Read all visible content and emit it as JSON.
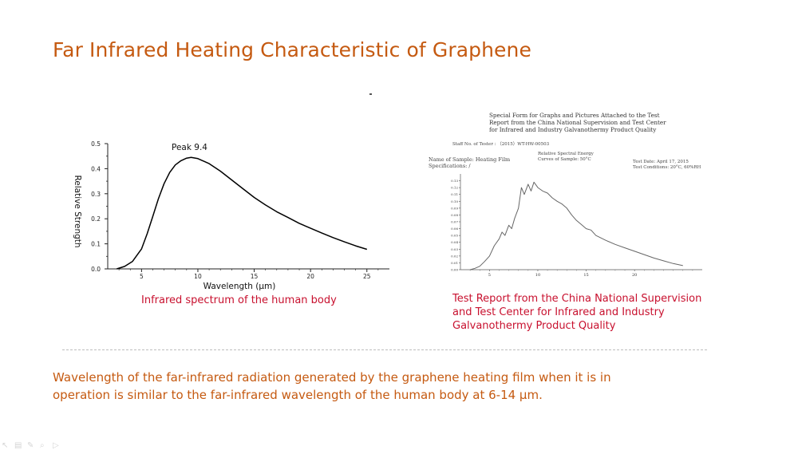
{
  "slide": {
    "title": "Far Infrared Heating Characteristic of Graphene",
    "caption_left": "Infrared spectrum of the human body",
    "caption_right_lines": [
      "Test Report from the China National Supervision",
      "and Test Center for Infrared and Industry",
      "Galvanothermy Product Quality"
    ],
    "bottom_lines": [
      "Wavelength of the far-infrared radiation generated by the graphene heating film when it is in",
      "operation is similar to the far-infrared wavelength of the human body at 6-14 μm."
    ]
  },
  "report": {
    "heading_lines": [
      "Special Form for Graphs and Pictures Attached to the Test",
      "Report from the China National Supervision and Test Center",
      "for Infrared and Industry Galvanothermy Product Quality"
    ],
    "staff_no": "Staff No. of Tester : （2015）WT-HW-00503",
    "sample_name": "Name of Sample: Heating Film",
    "specifications": "Specifications: /",
    "energy_label": "Relative Spectral Energy",
    "curves_label": "Curves of Sample: 50°C",
    "test_date": "Test Date: April 17, 2015",
    "test_conditions": "Test Conditions: 20°C, 60%RH"
  },
  "colors": {
    "title": "#c55a11",
    "caption": "#c8102e",
    "curve": "#000000",
    "report_curve": "#666666"
  },
  "toolbar": {
    "icons": [
      "pointer-icon",
      "notes-icon",
      "pen-icon",
      "search-icon",
      "next-icon"
    ]
  },
  "chart_data": [
    {
      "type": "line",
      "title": "",
      "xlabel": "Wavelength (μm)",
      "ylabel": "Relative Strength",
      "xlim": [
        2,
        27
      ],
      "ylim": [
        0,
        0.5
      ],
      "x_ticks": [
        5,
        10,
        15,
        20,
        25
      ],
      "y_ticks": [
        0.0,
        0.1,
        0.2,
        0.3,
        0.4,
        0.5
      ],
      "annotation": "Peak 9.4",
      "grid": false,
      "series": [
        {
          "x": [
            2.8,
            3.5,
            4.2,
            5,
            5.5,
            6,
            6.5,
            7,
            7.5,
            8,
            8.5,
            9,
            9.4,
            10,
            11,
            12,
            13,
            14,
            15,
            16,
            17,
            18,
            19,
            20,
            21,
            22,
            23,
            24,
            25
          ],
          "y": [
            0.0,
            0.01,
            0.03,
            0.08,
            0.14,
            0.21,
            0.28,
            0.34,
            0.385,
            0.415,
            0.432,
            0.442,
            0.445,
            0.44,
            0.42,
            0.39,
            0.355,
            0.32,
            0.285,
            0.255,
            0.228,
            0.205,
            0.182,
            0.162,
            0.143,
            0.125,
            0.108,
            0.092,
            0.078
          ]
        }
      ]
    },
    {
      "type": "line",
      "title": "",
      "xlabel": "",
      "ylabel": "",
      "xlim": [
        2,
        27
      ],
      "ylim": [
        0,
        0.14
      ],
      "x_ticks": [
        5,
        10,
        15,
        20
      ],
      "y_ticks": [
        0.0,
        0.01,
        0.02,
        0.03,
        0.04,
        0.05,
        0.06,
        0.07,
        0.08,
        0.09,
        0.1,
        0.11,
        0.12,
        0.13
      ],
      "grid": false,
      "series": [
        {
          "x": [
            3,
            3.5,
            4,
            4.5,
            5,
            5.5,
            6,
            6.3,
            6.6,
            7,
            7.3,
            7.6,
            8,
            8.3,
            8.6,
            9,
            9.3,
            9.6,
            10,
            10.5,
            11,
            11.5,
            12,
            12.5,
            13,
            13.5,
            14,
            14.5,
            15,
            15.5,
            16,
            17,
            18,
            19,
            20,
            21,
            22,
            23,
            24,
            25
          ],
          "y": [
            0.0,
            0.002,
            0.005,
            0.012,
            0.02,
            0.035,
            0.045,
            0.055,
            0.05,
            0.065,
            0.06,
            0.075,
            0.09,
            0.12,
            0.11,
            0.125,
            0.115,
            0.128,
            0.12,
            0.115,
            0.112,
            0.105,
            0.1,
            0.096,
            0.09,
            0.08,
            0.072,
            0.066,
            0.06,
            0.058,
            0.05,
            0.043,
            0.037,
            0.032,
            0.027,
            0.022,
            0.017,
            0.013,
            0.009,
            0.006
          ]
        }
      ]
    }
  ]
}
